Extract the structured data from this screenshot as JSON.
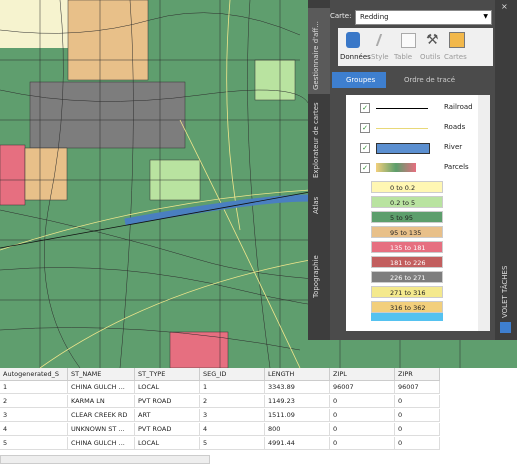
{
  "panel": {
    "map_label": "Carte:",
    "map_value": "Redding",
    "toolbar": [
      "Données",
      "Style",
      "Table",
      "Outils",
      "Cartes"
    ],
    "groups": "Groupes",
    "draw_order": "Ordre de tracé",
    "layers": [
      {
        "name": "Railroad"
      },
      {
        "name": "Roads"
      },
      {
        "name": "River"
      },
      {
        "name": "Parcels"
      }
    ],
    "legend": [
      {
        "label": "0 to 0.2",
        "color": "#fff7b3"
      },
      {
        "label": "0.2 to 5",
        "color": "#b9e3a0"
      },
      {
        "label": "5 to 95",
        "color": "#5c9e6c"
      },
      {
        "label": "95 to 135",
        "color": "#e8c089"
      },
      {
        "label": "135 to 181",
        "color": "#e66f80"
      },
      {
        "label": "181 to 226",
        "color": "#c25e5e"
      },
      {
        "label": "226 to 271",
        "color": "#7d7d7d"
      },
      {
        "label": "271 to 316",
        "color": "#f4e98d"
      },
      {
        "label": "316 to 362",
        "color": "#f2cf7c"
      }
    ],
    "side_tabs": [
      "Gestionnaire d'aff...",
      "Explorateur de cartes",
      "Atlas",
      "Topographie"
    ],
    "task_pane": "VOLET TÂCHES"
  },
  "table": {
    "headers": [
      "Autogenerated_S",
      "ST_NAME",
      "ST_TYPE",
      "SEG_ID",
      "LENGTH",
      "ZIPL",
      "ZIPR"
    ],
    "rows": [
      [
        "1",
        "CHINA GULCH ...",
        "LOCAL",
        "1",
        "3343.89",
        "96007",
        "96007"
      ],
      [
        "2",
        "KARMA LN",
        "PVT ROAD",
        "2",
        "1149.23",
        "0",
        "0"
      ],
      [
        "3",
        "CLEAR CREEK RD",
        "ART",
        "3",
        "1511.09",
        "0",
        "0"
      ],
      [
        "4",
        "UNKNOWN ST ...",
        "PVT ROAD",
        "4",
        "800",
        "0",
        "0"
      ],
      [
        "5",
        "CHINA GULCH ...",
        "LOCAL",
        "5",
        "4991.44",
        "0",
        "0"
      ]
    ]
  }
}
